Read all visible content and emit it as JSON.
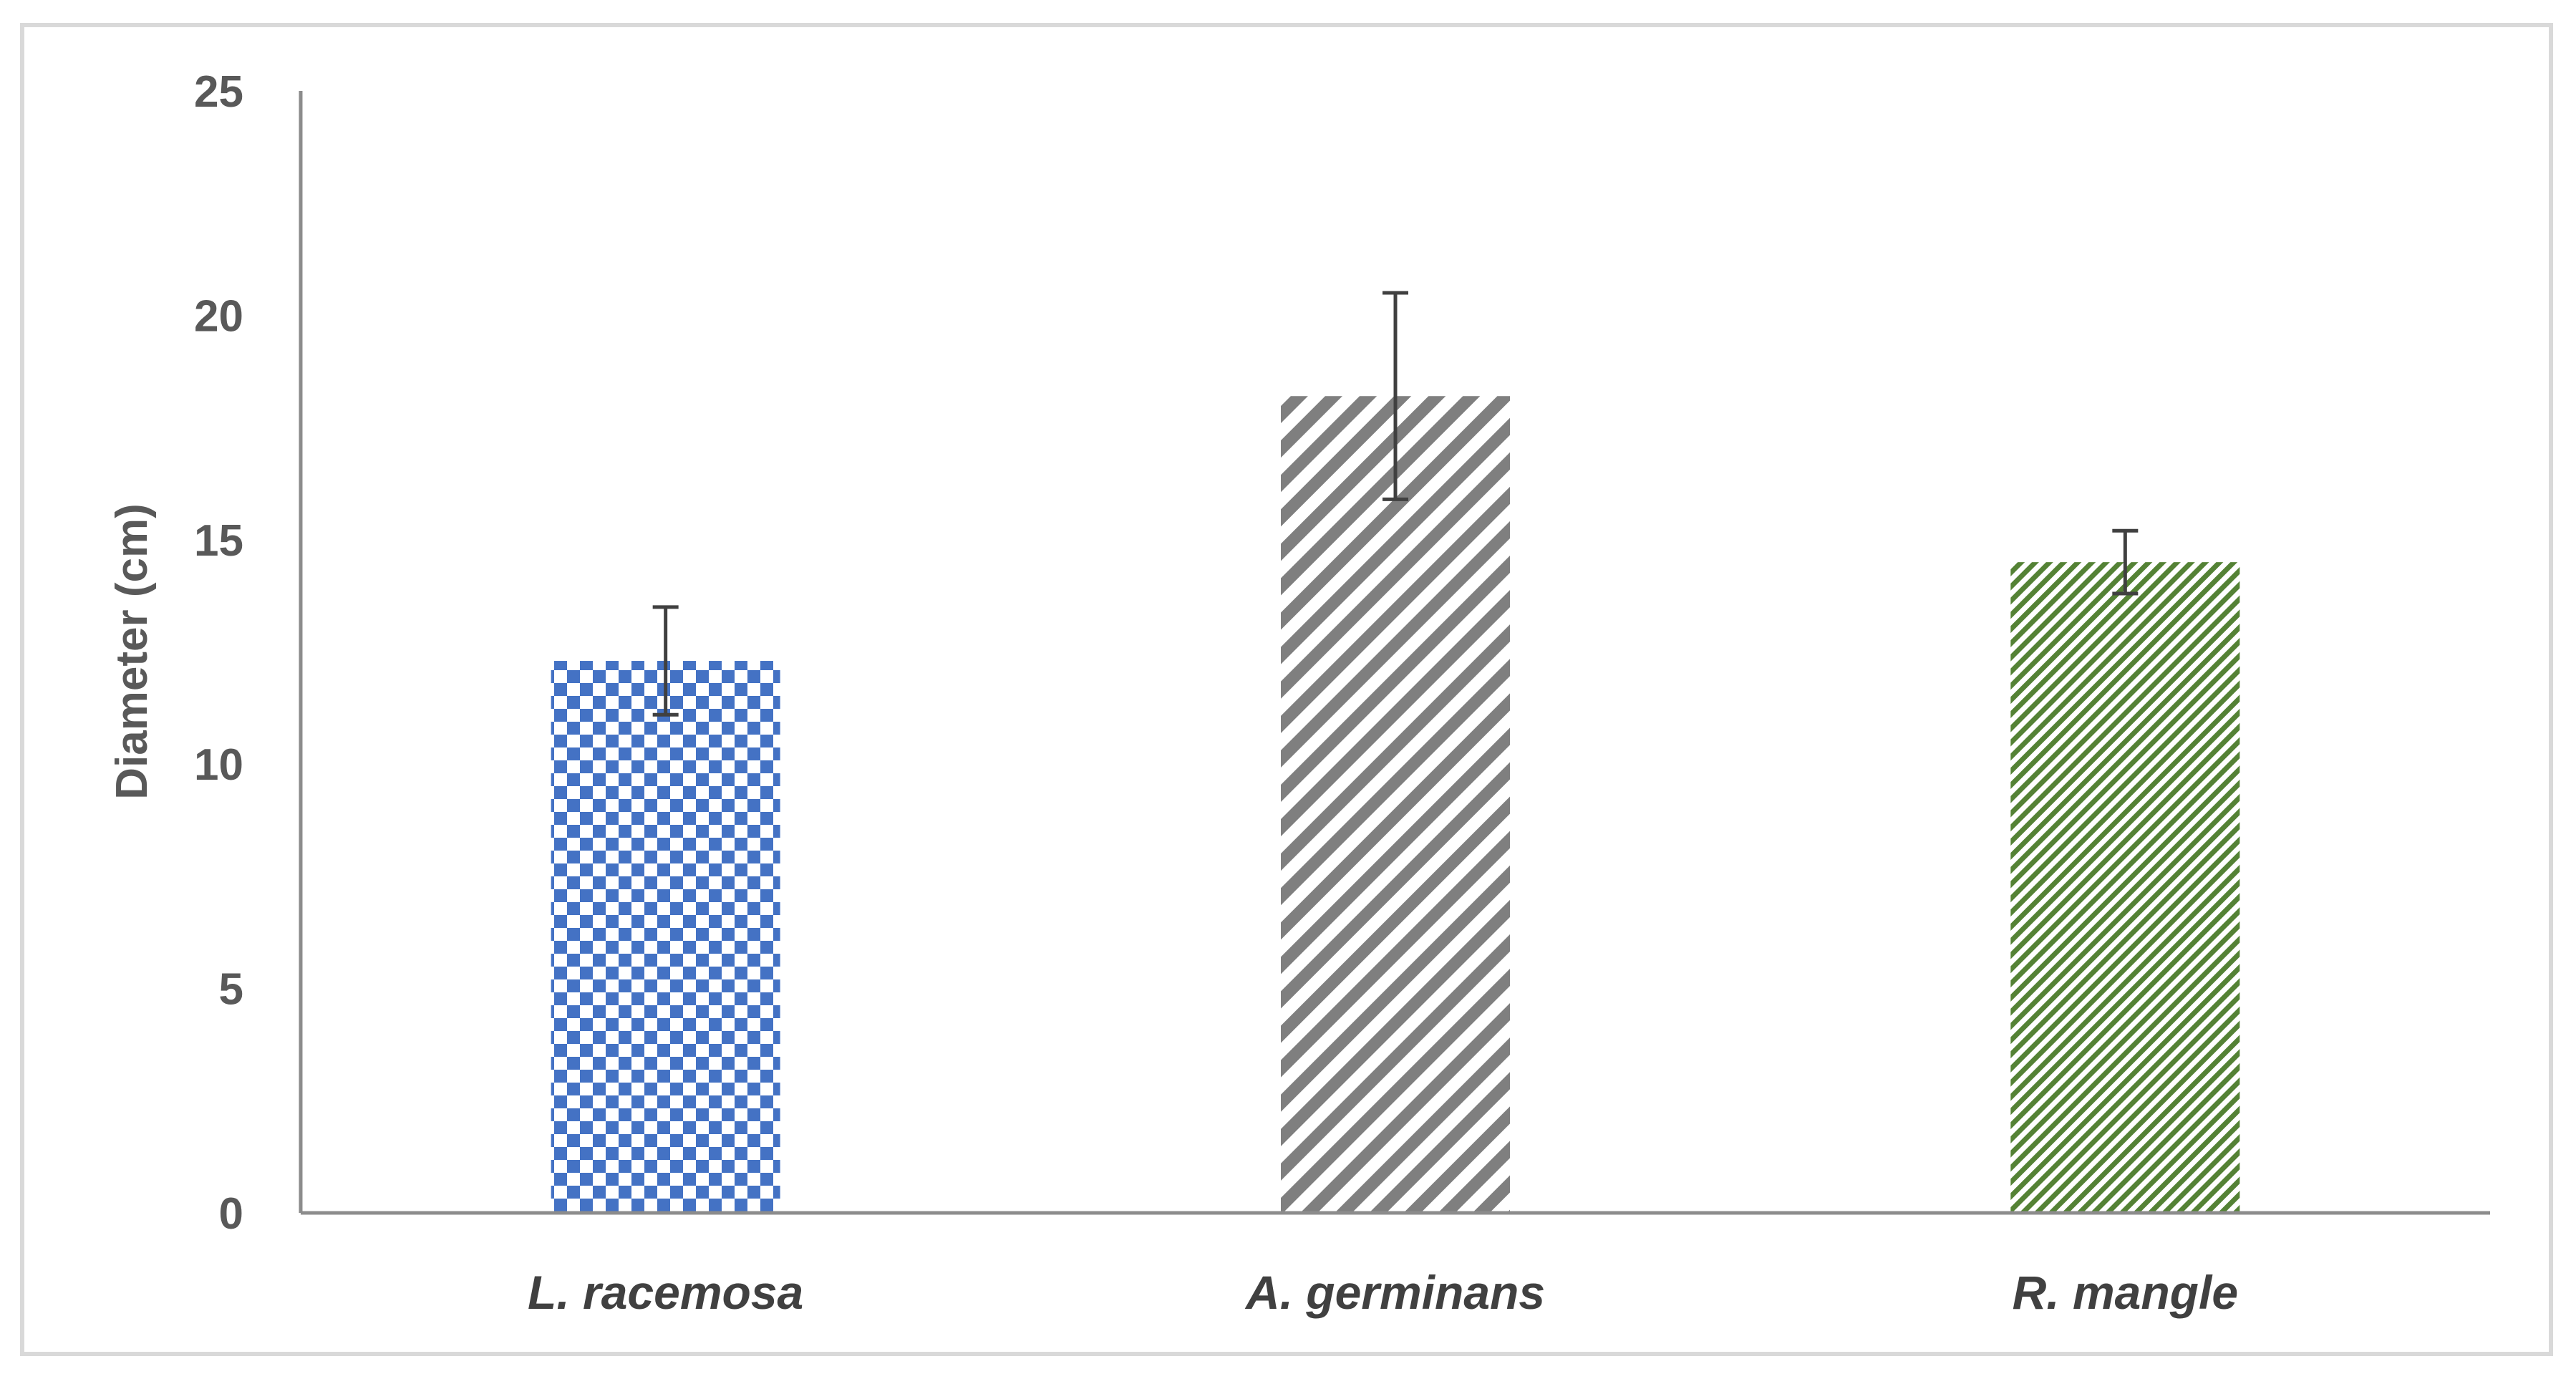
{
  "chart_data": {
    "type": "bar",
    "title": "",
    "xlabel": "",
    "ylabel": "Diameter (cm)",
    "categories": [
      "L. racemosa",
      "A. germinans",
      "R. mangle"
    ],
    "values": [
      12.3,
      18.2,
      14.5
    ],
    "error": [
      1.2,
      2.3,
      0.7
    ],
    "ylim": [
      0,
      25
    ],
    "yticks": [
      "0",
      "5",
      "10",
      "15",
      "20",
      "25"
    ],
    "grid": false,
    "legend": "none",
    "colors": {
      "L. racemosa": "#4472c4",
      "A. germinans": "#7f7f7f",
      "R. mangle": "#548235",
      "axis": "#8c8c8c",
      "error_bar": "#404040"
    },
    "patterns": [
      "checkerboard",
      "wide-diagonal",
      "narrow-diagonal"
    ]
  }
}
